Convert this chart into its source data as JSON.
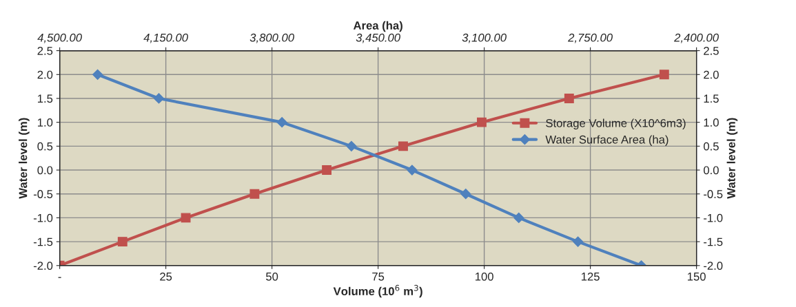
{
  "chart_data": {
    "type": "line",
    "xlabel": "Volume (10$^{6}$ m$^{3}$)",
    "x2label": "Area (ha)",
    "ylabel": "Water level (m)",
    "y2label": "Water level (m)",
    "xlim": [
      0,
      150
    ],
    "xticks": [
      {
        "value": 0,
        "label": "-"
      },
      25,
      50,
      75,
      100,
      125,
      150
    ],
    "x2lim": [
      4500,
      2400
    ],
    "x2ticks": [
      {
        "value": 4500,
        "label": "4,500.00"
      },
      {
        "value": 4150,
        "label": "4,150.00"
      },
      {
        "value": 3800,
        "label": "3,800.00"
      },
      {
        "value": 3450,
        "label": "3,450.00"
      },
      {
        "value": 3100,
        "label": "3,100.00"
      },
      {
        "value": 2750,
        "label": "2,750.00"
      },
      {
        "value": 2400,
        "label": "2,400.00"
      }
    ],
    "ylim": [
      -2.0,
      2.5
    ],
    "yticks": [
      {
        "value": -2.0,
        "label": "-2.0"
      },
      {
        "value": -1.5,
        "label": "-1.5"
      },
      {
        "value": -1.0,
        "label": "-1.0"
      },
      {
        "value": -0.5,
        "label": "-0.5"
      },
      {
        "value": 0.0,
        "label": "0.0"
      },
      {
        "value": 0.5,
        "label": "0.5"
      },
      {
        "value": 1.0,
        "label": "1.0"
      },
      {
        "value": 1.5,
        "label": "1.5"
      },
      {
        "value": 2.0,
        "label": "2.0"
      },
      {
        "value": 2.5,
        "label": "2.5"
      }
    ],
    "y2lim": [
      -2.0,
      2.5
    ],
    "y2ticks": [
      {
        "value": -2.0,
        "label": "-2.0"
      },
      {
        "value": -1.5,
        "label": "-1.5"
      },
      {
        "value": -1.0,
        "label": "-1.0"
      },
      {
        "value": -0.5,
        "label": "-0.5"
      },
      {
        "value": 0.0,
        "label": "0.0"
      },
      {
        "value": 0.5,
        "label": "0.5"
      },
      {
        "value": 1.0,
        "label": "1.0"
      },
      {
        "value": 1.5,
        "label": "1.5"
      },
      {
        "value": 2.0,
        "label": "2.0"
      },
      {
        "value": 2.5,
        "label": "2.5"
      }
    ],
    "grid": true,
    "legend": "right",
    "series": [
      {
        "name": "Storage Volume (X10^6m3)",
        "color": "#c0504d",
        "marker": "square",
        "x": [
          0,
          14.8,
          29.7,
          45.9,
          62.9,
          80.9,
          99.4,
          120.0,
          142.4
        ],
        "values": [
          -2.0,
          -1.5,
          -1.0,
          -0.5,
          0.0,
          0.5,
          1.0,
          1.5,
          2.0
        ]
      },
      {
        "name": "Water Surface Area (ha)",
        "color": "#4f81bd",
        "marker": "diamond",
        "axis": "x2",
        "x": [
          4375,
          4173,
          3767,
          3538,
          3338,
          3161,
          2986,
          2791,
          2582
        ],
        "values": [
          2.0,
          1.5,
          1.0,
          0.5,
          0.0,
          -0.5,
          -1.0,
          -1.5,
          -2.0
        ]
      }
    ]
  }
}
